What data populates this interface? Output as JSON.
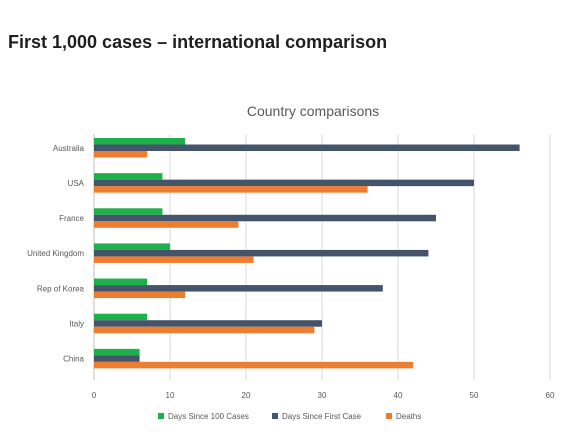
{
  "page": {
    "heading": "First 1,000 cases – international comparison"
  },
  "chart_data": {
    "type": "bar",
    "orientation": "horizontal",
    "title": "Country comparisons",
    "xlabel": "",
    "ylabel": "",
    "categories": [
      "Australia",
      "USA",
      "France",
      "United Kingdom",
      "Rep of Korea",
      "Italy",
      "China"
    ],
    "series": [
      {
        "name": "Days Since 100 Cases",
        "color": "#1eb04b",
        "values": [
          12,
          9,
          9,
          10,
          7,
          7,
          6
        ]
      },
      {
        "name": "Days Since First Case",
        "color": "#44546a",
        "values": [
          56,
          50,
          45,
          44,
          38,
          30,
          6
        ]
      },
      {
        "name": "Deaths",
        "color": "#ed7d31",
        "values": [
          7,
          36,
          19,
          21,
          12,
          29,
          42
        ]
      }
    ],
    "xlim": [
      0,
      60
    ],
    "xticks": [
      0,
      10,
      20,
      30,
      40,
      50,
      60
    ],
    "grid": "vertical",
    "legend_position": "bottom"
  }
}
